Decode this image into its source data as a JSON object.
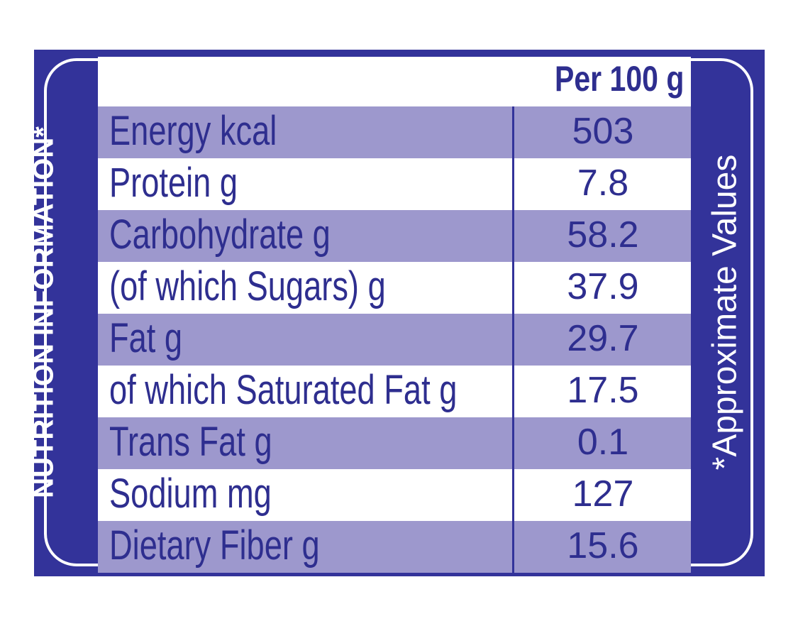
{
  "label": {
    "side_left": "NUTRITION INFORMATION*",
    "side_right": "*Approximate Values",
    "column_header": "Per 100 g",
    "rows": [
      {
        "name": "Energy kcal",
        "value": "503"
      },
      {
        "name": "Protein g",
        "value": "7.8"
      },
      {
        "name": "Carbohydrate g",
        "value": "58.2"
      },
      {
        "name": "(of which Sugars) g",
        "value": "37.9"
      },
      {
        "name": "Fat g",
        "value": "29.7"
      },
      {
        "name": "of which Saturated Fat g",
        "value": "17.5"
      },
      {
        "name": "Trans Fat g",
        "value": "0.1"
      },
      {
        "name": "Sodium mg",
        "value": "127"
      },
      {
        "name": "Dietary Fiber g",
        "value": "15.6"
      }
    ]
  },
  "colors": {
    "border_blue": "#33339a",
    "text_blue": "#2e2e8f",
    "row_shade": "#9d98cd",
    "background": "#ffffff"
  }
}
